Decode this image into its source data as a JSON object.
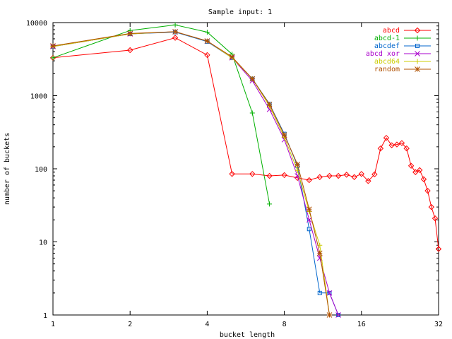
{
  "chart_data": {
    "type": "line",
    "title": "Sample input: 1",
    "xlabel": "bucket length",
    "ylabel": "number of buckets",
    "x_scale": "log2",
    "y_scale": "log10",
    "xlim": [
      1,
      32
    ],
    "ylim": [
      1,
      10000
    ],
    "x_ticks": [
      1,
      2,
      4,
      8,
      16,
      32
    ],
    "x_tick_labels": [
      "1",
      "2",
      "4",
      "8",
      "16",
      "32"
    ],
    "y_ticks": [
      1,
      10,
      100,
      1000,
      10000
    ],
    "y_tick_labels": [
      "1",
      "10",
      "100",
      "1000",
      "10000"
    ],
    "grid": false,
    "legend_position": "top-right",
    "series": [
      {
        "name": "abcd",
        "color": "#ff0000",
        "marker": "diamond",
        "x": [
          1,
          2,
          3,
          4,
          5,
          6,
          7,
          8,
          9,
          10,
          11,
          12,
          13,
          14,
          15,
          16,
          17,
          18,
          19,
          20,
          21,
          22,
          23,
          24,
          25,
          26,
          27,
          28,
          29,
          30,
          31,
          32
        ],
        "y": [
          3300,
          4200,
          6200,
          3600,
          85,
          85,
          80,
          82,
          75,
          70,
          77,
          80,
          80,
          83,
          77,
          85,
          68,
          84,
          190,
          265,
          210,
          215,
          225,
          190,
          110,
          90,
          96,
          72,
          50,
          30,
          21,
          8
        ]
      },
      {
        "name": "abcd-1",
        "color": "#00b000",
        "marker": "plus",
        "x": [
          1,
          2,
          3,
          4,
          5,
          6,
          7
        ],
        "y": [
          3300,
          7800,
          9300,
          7400,
          3700,
          580,
          33
        ]
      },
      {
        "name": "abcdef",
        "color": "#0066cc",
        "marker": "square",
        "x": [
          1,
          2,
          3,
          4,
          5,
          6,
          7,
          8,
          9,
          10,
          11,
          12,
          13
        ],
        "y": [
          4700,
          7000,
          7400,
          5500,
          3300,
          1700,
          770,
          300,
          110,
          15,
          2,
          2,
          1
        ]
      },
      {
        "name": "abcd xor",
        "color": "#aa00cc",
        "marker": "x",
        "x": [
          1,
          2,
          3,
          4,
          5,
          6,
          7,
          8,
          9,
          10,
          11,
          12,
          13
        ],
        "y": [
          4700,
          7000,
          7500,
          5600,
          3300,
          1600,
          650,
          250,
          80,
          20,
          6,
          2,
          1
        ]
      },
      {
        "name": "abcd64",
        "color": "#cccc00",
        "marker": "plus",
        "x": [
          1,
          2,
          3,
          4,
          5,
          6,
          7,
          8,
          9,
          10,
          11,
          12
        ],
        "y": [
          4700,
          7000,
          7500,
          5600,
          3300,
          1700,
          720,
          270,
          95,
          26,
          9,
          1
        ]
      },
      {
        "name": "random",
        "color": "#b05000",
        "marker": "star",
        "x": [
          1,
          2,
          3,
          4,
          5,
          6,
          7,
          8,
          9,
          10,
          11,
          12
        ],
        "y": [
          4800,
          7100,
          7500,
          5600,
          3400,
          1700,
          760,
          290,
          115,
          28,
          7,
          1
        ]
      }
    ]
  }
}
